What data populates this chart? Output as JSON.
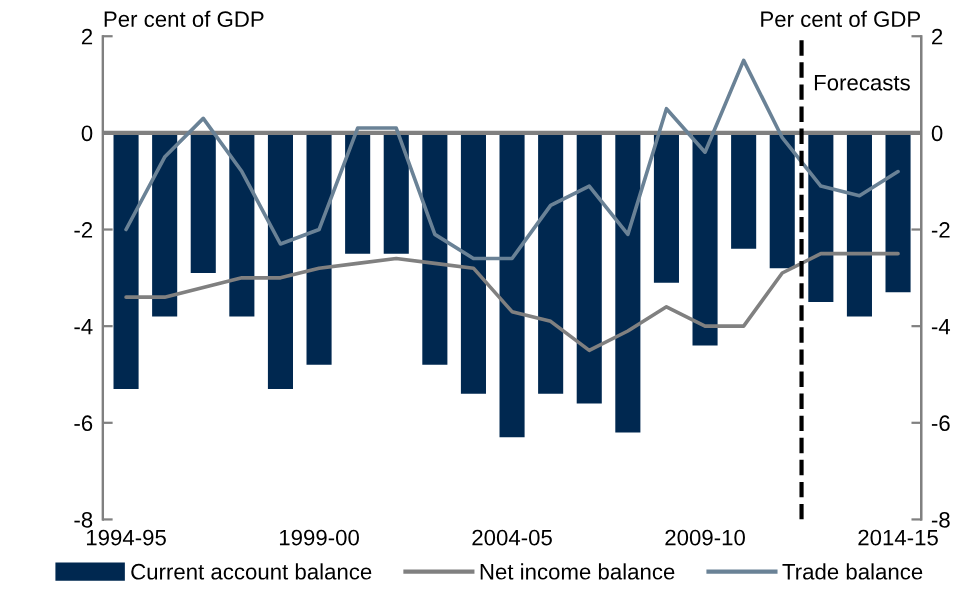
{
  "chart_data": {
    "type": "bar",
    "ylabel": "Per cent of GDP",
    "y2label": "Per cent of GDP",
    "categories": [
      "1994-95",
      null,
      null,
      null,
      null,
      "1999-00",
      null,
      null,
      null,
      null,
      "2004-05",
      null,
      null,
      null,
      null,
      "2009-10",
      null,
      null,
      null,
      null,
      "2014-15"
    ],
    "series": [
      {
        "name": "Current account balance",
        "color": "#002850",
        "values": [
          -5.3,
          -3.8,
          -2.9,
          -3.8,
          -5.3,
          -4.8,
          -2.5,
          -2.5,
          -4.8,
          -5.4,
          -6.3,
          -5.4,
          -5.6,
          -6.2,
          -3.1,
          -4.4,
          -2.4,
          -2.8,
          -3.5,
          -3.8,
          -3.3
        ]
      },
      {
        "name": "Net income balance",
        "type": "line",
        "color": "#808080",
        "values": [
          -3.4,
          -3.4,
          -3.2,
          -3.0,
          -3.0,
          -2.8,
          -2.7,
          -2.6,
          -2.7,
          -2.8,
          -3.7,
          -3.9,
          -4.5,
          -4.1,
          -3.6,
          -4.0,
          -4.0,
          -2.9,
          -2.5,
          -2.5,
          -2.5
        ]
      },
      {
        "name": "Trade balance",
        "type": "line",
        "color": "#6a8296",
        "values": [
          -2.0,
          -0.5,
          0.3,
          -0.8,
          -2.3,
          -2.0,
          0.1,
          0.1,
          -2.1,
          -2.6,
          -2.6,
          -1.5,
          -1.1,
          -2.1,
          0.5,
          -0.4,
          1.5,
          -0.1,
          -1.1,
          -1.3,
          -0.8
        ]
      }
    ],
    "ylim": [
      -8,
      2
    ],
    "yticks": [
      -8,
      -6,
      -4,
      -2,
      0,
      2
    ],
    "y2lim": [
      -8,
      2
    ],
    "y2ticks": [
      -8,
      -6,
      -4,
      -2,
      0,
      2
    ],
    "annotations": [
      "Forecasts"
    ],
    "grid": false,
    "legend": "bottom",
    "marker": "none",
    "line_style": "solid"
  }
}
